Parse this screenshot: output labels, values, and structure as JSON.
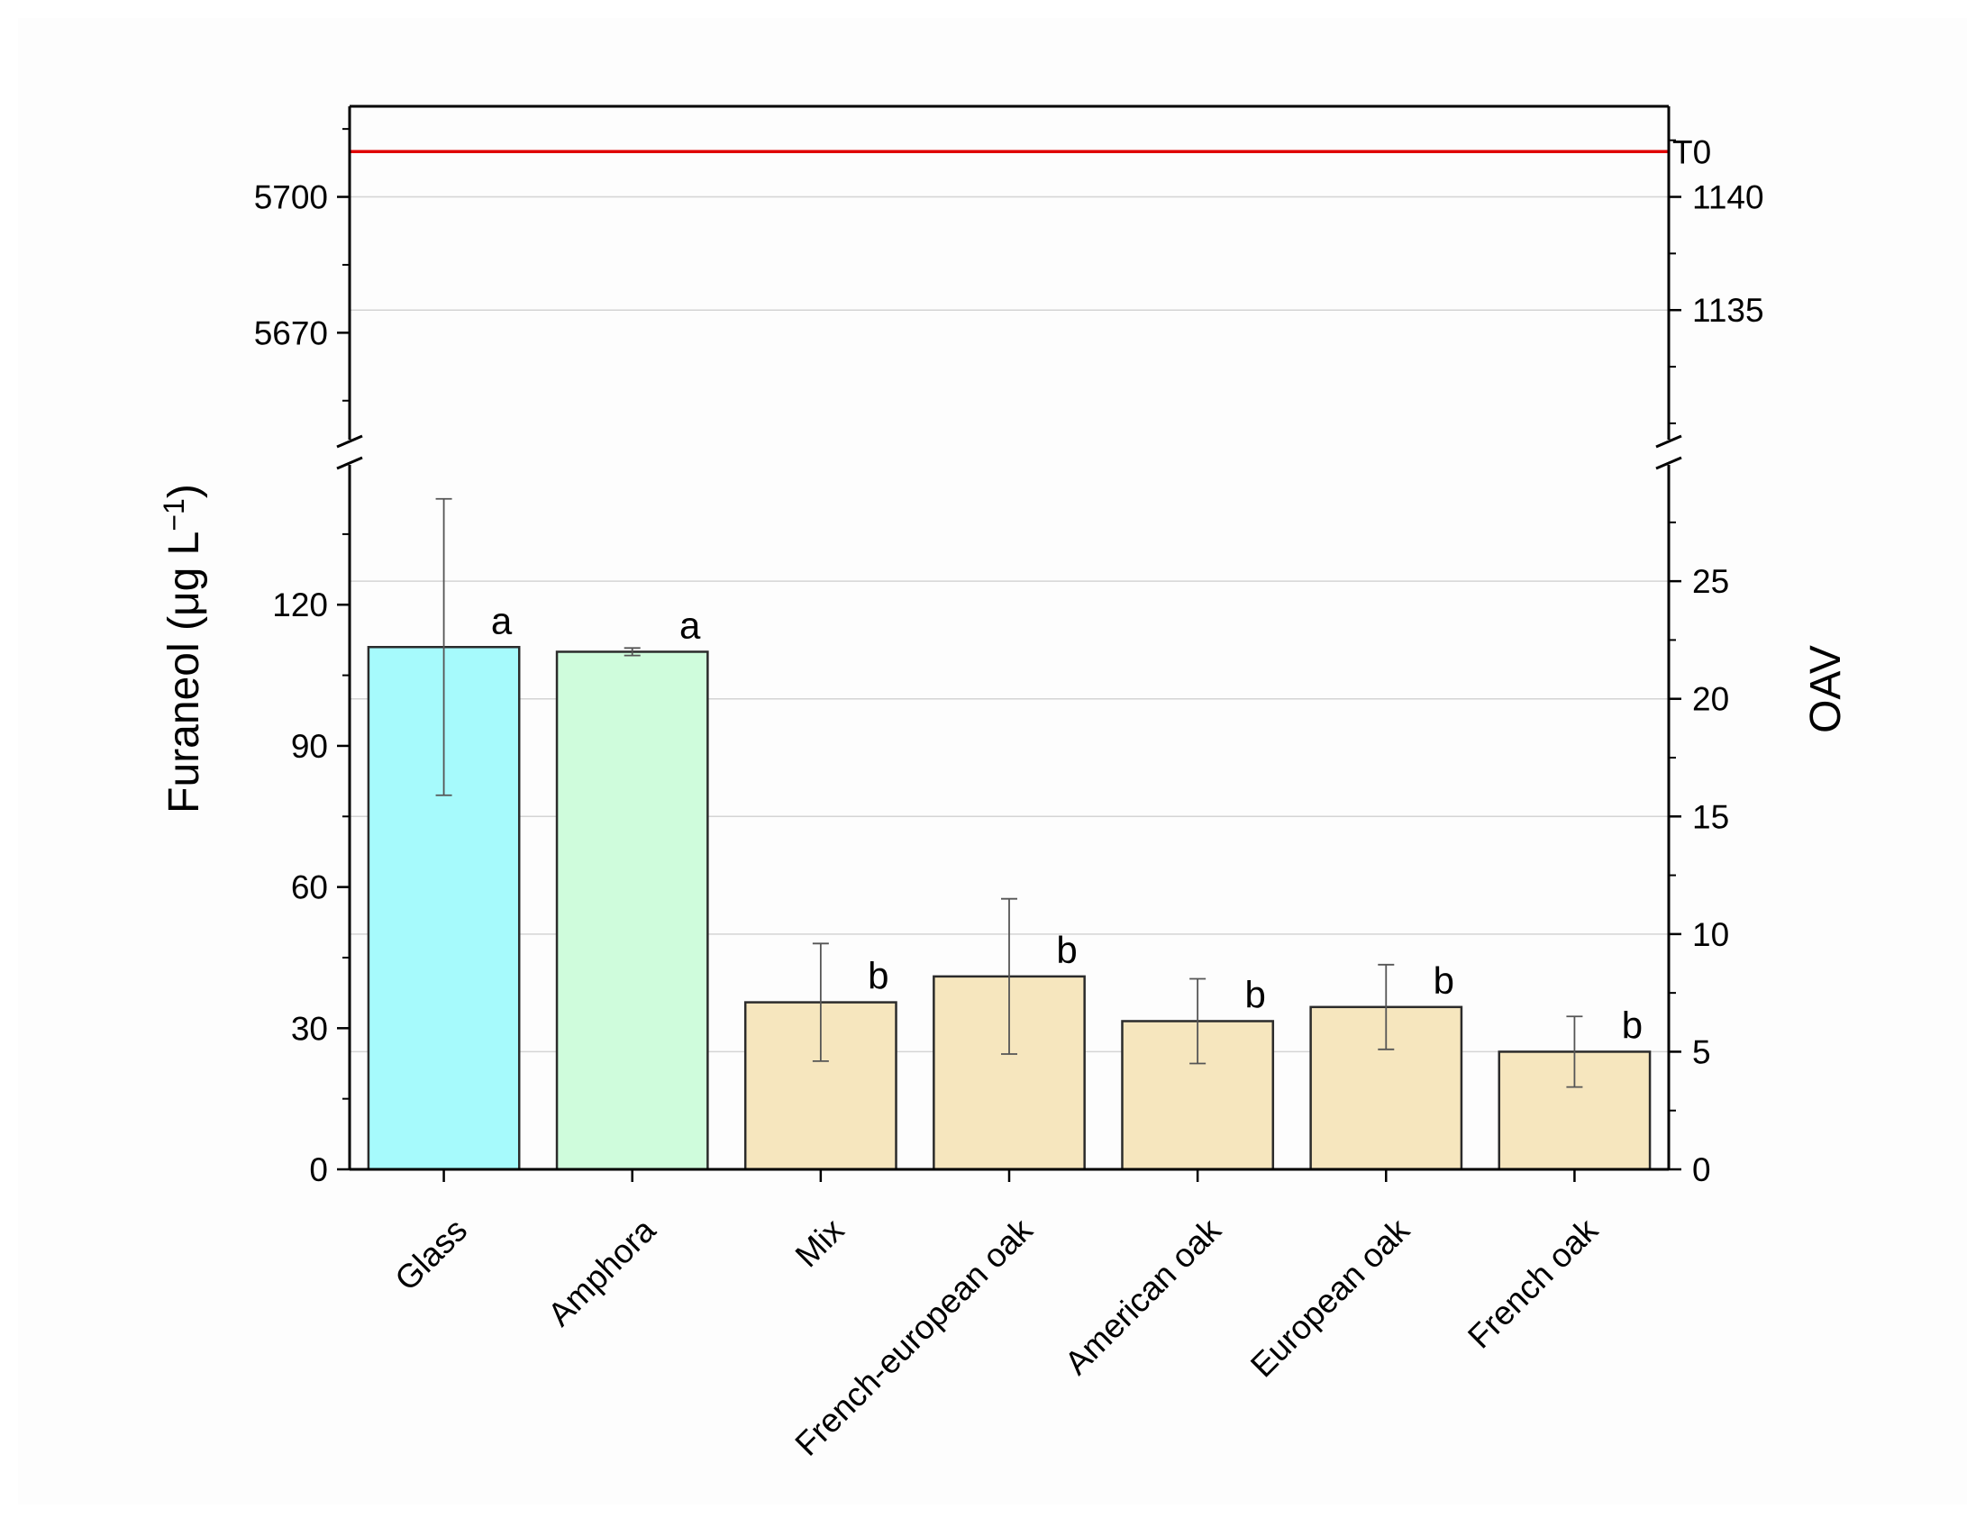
{
  "chart_data": {
    "type": "bar",
    "categories": [
      "Glass",
      "Amphora",
      "Mix",
      "French-european oak",
      "American oak",
      "European oak",
      "French oak"
    ],
    "series": [
      {
        "values": [
          111.0,
          110.0,
          35.5,
          41.0,
          31.5,
          34.5,
          25.0
        ],
        "error": [
          31.5,
          0.8,
          12.5,
          16.5,
          9.0,
          9.0,
          7.5
        ],
        "significance": [
          "a",
          "a",
          "b",
          "b",
          "b",
          "b",
          "b"
        ],
        "colors": [
          "#A6FAFC",
          "#CFFCDC",
          "#F6E6BE",
          "#F6E6BE",
          "#F6E6BE",
          "#F6E6BE",
          "#F6E6BE"
        ]
      }
    ],
    "reference_line": {
      "label": "T0",
      "value": 5710,
      "color": "#E00000"
    },
    "ylabel": {
      "left_main": "Furaneol (",
      "left_mu": "μ",
      "left_rest": "g L",
      "left_sup": "−1",
      "left_close": ")",
      "right": "OAV"
    },
    "y_left_lower": {
      "ylim": [
        0,
        148
      ],
      "ticks": [
        0,
        30,
        60,
        90,
        120
      ],
      "tick_labels": [
        "0",
        "30",
        "60",
        "90",
        "120"
      ]
    },
    "y_left_upper": {
      "ylim": [
        5646,
        5720
      ],
      "ticks": [
        5670,
        5700
      ],
      "tick_labels": [
        "5670",
        "5700"
      ]
    },
    "y_right_lower": {
      "ylim": [
        0,
        29.6
      ],
      "ticks": [
        0,
        5,
        10,
        15,
        20,
        25
      ],
      "tick_labels": [
        "0",
        "5",
        "10",
        "15",
        "20",
        "25"
      ]
    },
    "y_right_upper": {
      "ylim": [
        1129.2,
        1144
      ],
      "ticks": [
        1135,
        1140
      ],
      "tick_labels": [
        "1135",
        "1140"
      ]
    },
    "axis_break": true,
    "grid": true
  }
}
